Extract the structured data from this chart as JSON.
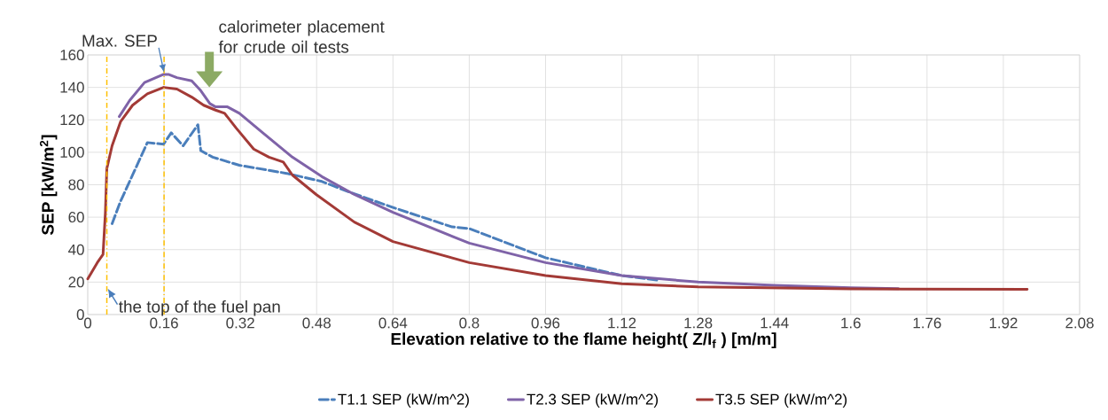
{
  "chart_data": {
    "type": "line",
    "xlabel": "Elevation relative to the flame height( Z/l$_{f}$ ) [m/m]",
    "ylabel": "SEP [kW/m$^{2}$]",
    "xlim": [
      0,
      2.08
    ],
    "ylim": [
      0,
      160
    ],
    "xticks": [
      0,
      0.16,
      0.32,
      0.48,
      0.64,
      0.8,
      0.96,
      1.12,
      1.28,
      1.44,
      1.6,
      1.76,
      1.92,
      2.08
    ],
    "yticks": [
      0,
      20,
      40,
      60,
      80,
      100,
      120,
      140,
      160
    ],
    "grid": true,
    "legend": "bottom",
    "series": [
      {
        "name": "T1.1 SEP (kW/m^2)",
        "color": "#4a7ebb",
        "line_style": "dashed",
        "x": [
          0.051,
          0.069,
          0.094,
          0.125,
          0.159,
          0.175,
          0.2,
          0.231,
          0.237,
          0.262,
          0.318,
          0.417,
          0.491,
          0.553,
          0.64,
          0.764,
          0.8,
          0.96,
          1.12,
          1.2
        ],
        "values": [
          56,
          70,
          86,
          106,
          105,
          112,
          104,
          117,
          101,
          97,
          92,
          87,
          82,
          75,
          66,
          54,
          53,
          35,
          24,
          21
        ]
      },
      {
        "name": "T2.3 SEP (kW/m^2)",
        "color": "#7f63a8",
        "line_style": "solid",
        "x": [
          0.066,
          0.088,
          0.119,
          0.159,
          0.169,
          0.187,
          0.218,
          0.237,
          0.256,
          0.268,
          0.293,
          0.318,
          0.367,
          0.429,
          0.491,
          0.559,
          0.64,
          0.8,
          0.96,
          1.12,
          1.28,
          1.44,
          1.6,
          1.7
        ],
        "values": [
          122,
          132,
          143,
          148,
          148,
          146,
          144,
          138,
          130,
          128,
          128,
          124,
          112,
          97,
          85,
          74,
          63,
          44,
          32,
          24,
          20,
          18,
          16.5,
          16
        ]
      },
      {
        "name": "T3.5 SEP (kW/m^2)",
        "color": "#a33a36",
        "line_style": "solid",
        "x": [
          0,
          0.02,
          0.032,
          0.037,
          0.04,
          0.051,
          0.069,
          0.094,
          0.125,
          0.159,
          0.187,
          0.218,
          0.243,
          0.268,
          0.287,
          0.311,
          0.348,
          0.38,
          0.41,
          0.429,
          0.479,
          0.559,
          0.64,
          0.8,
          0.96,
          1.12,
          1.28,
          1.44,
          1.6,
          1.97
        ],
        "values": [
          22,
          32,
          37,
          63,
          90,
          104,
          119,
          129,
          136,
          140,
          139,
          134,
          129,
          126,
          124,
          115,
          102,
          97,
          94,
          86,
          74,
          57,
          45,
          32,
          24,
          19,
          17,
          16.4,
          15.8,
          15.5
        ]
      }
    ],
    "ref_lines": [
      {
        "axis": "x",
        "value": 0.04,
        "color": "#ffc000",
        "line_style": "dashdot"
      },
      {
        "axis": "x",
        "value": 0.16,
        "color": "#ffc000",
        "line_style": "dashdot"
      }
    ],
    "annotations": [
      {
        "text": "Max. SEP",
        "x": 0.16,
        "y": 148
      },
      "calorimeter placement for crude oil tests",
      {
        "text": "the top of the fuel pan",
        "x": 0.04,
        "y": 16
      }
    ]
  }
}
